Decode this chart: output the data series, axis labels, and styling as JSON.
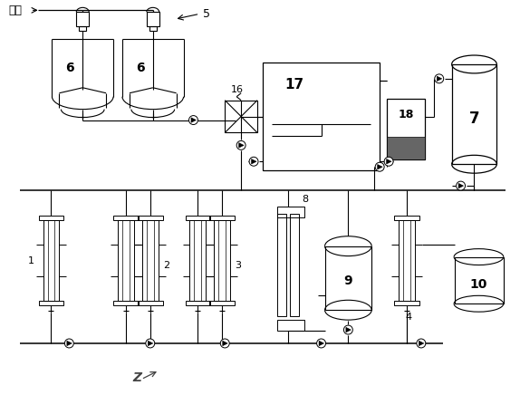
{
  "bg_color": "#ffffff",
  "line_color": "#000000",
  "figsize": [
    5.74,
    4.36
  ],
  "dpi": 100,
  "tank_fill": "#e8e8e8",
  "gray_fill": "#666666"
}
